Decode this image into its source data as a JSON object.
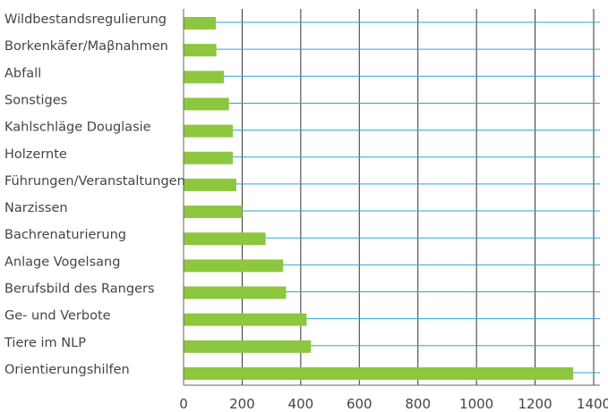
{
  "chart_data": {
    "type": "bar",
    "orientation": "horizontal",
    "title": "",
    "xlabel": "",
    "ylabel": "",
    "categories": [
      "Wildbestandsregulierung",
      "Borkenkäfer/Maβnahmen",
      "Abfall",
      "Sonstiges",
      "Kahlschläge Douglasie",
      "Holzernte",
      "Führungen/Veranstaltungen",
      "Narzissen",
      "Bachrenaturierung",
      "Anlage Vogelsang",
      "Berufsbild des Rangers",
      "Ge- und Verbote",
      "Tiere im NLP",
      "Orientierungshilfen"
    ],
    "values": [
      110,
      112,
      138,
      155,
      168,
      168,
      180,
      200,
      280,
      340,
      350,
      420,
      435,
      1330
    ],
    "xlim": [
      0,
      1400
    ],
    "xticks": [
      "0",
      "200",
      "400",
      "600",
      "800",
      "1000",
      "1200",
      "1400"
    ],
    "grid": "vertical and horizontal",
    "legend": "none",
    "colors": {
      "bar": "#8dc63f",
      "horizontal_grid": "#29a6d6",
      "vertical_grid": "#333333",
      "axis": "#666666",
      "text": "#444444"
    }
  }
}
